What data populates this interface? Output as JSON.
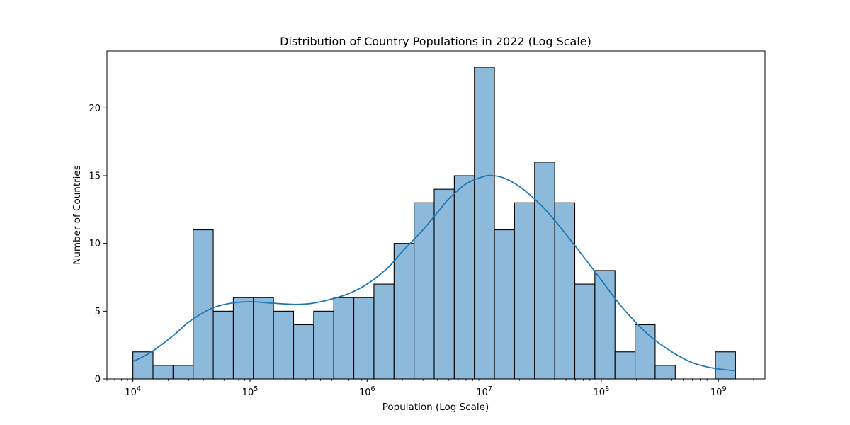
{
  "chart_data": {
    "type": "bar",
    "title": "Distribution of Country Populations in 2022 (Log Scale)",
    "xlabel": "Population (Log Scale)",
    "ylabel": "Number of Countries",
    "x_scale": "log",
    "xlim": [
      6000,
      2500000000
    ],
    "ylim": [
      0,
      24.2
    ],
    "x_major_ticks": [
      {
        "value": 10000,
        "base": "10",
        "exp": "4"
      },
      {
        "value": 100000,
        "base": "10",
        "exp": "5"
      },
      {
        "value": 1000000,
        "base": "10",
        "exp": "6"
      },
      {
        "value": 10000000,
        "base": "10",
        "exp": "7"
      },
      {
        "value": 100000000,
        "base": "10",
        "exp": "8"
      },
      {
        "value": 1000000000,
        "base": "10",
        "exp": "9"
      }
    ],
    "y_ticks": [
      {
        "value": 0,
        "label": "0"
      },
      {
        "value": 5,
        "label": "5"
      },
      {
        "value": 10,
        "label": "10"
      },
      {
        "value": 15,
        "label": "15"
      },
      {
        "value": 20,
        "label": "20"
      }
    ],
    "bins": [
      {
        "x0": 10000,
        "x1": 14840,
        "count": 2
      },
      {
        "x0": 14840,
        "x1": 22030,
        "count": 1
      },
      {
        "x0": 22030,
        "x1": 32700,
        "count": 1
      },
      {
        "x0": 32700,
        "x1": 48530,
        "count": 11
      },
      {
        "x0": 48530,
        "x1": 72040,
        "count": 5
      },
      {
        "x0": 72040,
        "x1": 106900,
        "count": 6
      },
      {
        "x0": 106900,
        "x1": 158700,
        "count": 6
      },
      {
        "x0": 158700,
        "x1": 235600,
        "count": 5
      },
      {
        "x0": 235600,
        "x1": 349700,
        "count": 4
      },
      {
        "x0": 349700,
        "x1": 519100,
        "count": 5
      },
      {
        "x0": 519100,
        "x1": 770500,
        "count": 6
      },
      {
        "x0": 770500,
        "x1": 1143700,
        "count": 6
      },
      {
        "x0": 1143700,
        "x1": 1697700,
        "count": 7
      },
      {
        "x0": 1697700,
        "x1": 2520000,
        "count": 10
      },
      {
        "x0": 2520000,
        "x1": 3740600,
        "count": 13
      },
      {
        "x0": 3740600,
        "x1": 5552400,
        "count": 14
      },
      {
        "x0": 5552400,
        "x1": 8241900,
        "count": 15
      },
      {
        "x0": 8241900,
        "x1": 12234000,
        "count": 23
      },
      {
        "x0": 12234000,
        "x1": 18160000,
        "count": 11
      },
      {
        "x0": 18160000,
        "x1": 26956000,
        "count": 13
      },
      {
        "x0": 26956000,
        "x1": 40012000,
        "count": 16
      },
      {
        "x0": 40012000,
        "x1": 59392000,
        "count": 13
      },
      {
        "x0": 59392000,
        "x1": 88160000,
        "count": 7
      },
      {
        "x0": 88160000,
        "x1": 130860000,
        "count": 8
      },
      {
        "x0": 130860000,
        "x1": 194240000,
        "count": 2
      },
      {
        "x0": 194240000,
        "x1": 288330000,
        "count": 4
      },
      {
        "x0": 288330000,
        "x1": 427980000,
        "count": 1
      },
      {
        "x0": 427980000,
        "x1": 635280000,
        "count": 0
      },
      {
        "x0": 635280000,
        "x1": 942990000,
        "count": 0
      },
      {
        "x0": 942990000,
        "x1": 1400000000,
        "count": 2
      }
    ],
    "kde": {
      "x": [
        10000,
        12000,
        15000,
        20000,
        25000,
        30000,
        40000,
        50000,
        70000,
        100000,
        150000,
        250000,
        350000,
        500000,
        700000,
        1000000,
        1500000,
        2000000,
        3000000,
        4000000,
        5000000,
        7000000,
        10000000,
        12000000,
        15000000,
        20000000,
        30000000,
        40000000,
        60000000,
        100000000,
        150000000,
        250000000,
        400000000,
        600000000,
        900000000,
        1400000000
      ],
      "y": [
        1.3,
        1.6,
        2.1,
        2.9,
        3.6,
        4.2,
        4.9,
        5.3,
        5.6,
        5.7,
        5.6,
        5.5,
        5.6,
        5.9,
        6.3,
        7.0,
        8.2,
        9.4,
        11.0,
        12.3,
        13.3,
        14.4,
        14.95,
        15.0,
        14.8,
        14.2,
        12.9,
        11.7,
        9.8,
        7.3,
        5.3,
        3.3,
        2.0,
        1.2,
        0.8,
        0.6
      ]
    },
    "colors": {
      "bar_fill": "#8db9db",
      "bar_edge": "#000000",
      "kde_line": "#1f77b4"
    },
    "grid": false,
    "legend": "none"
  }
}
